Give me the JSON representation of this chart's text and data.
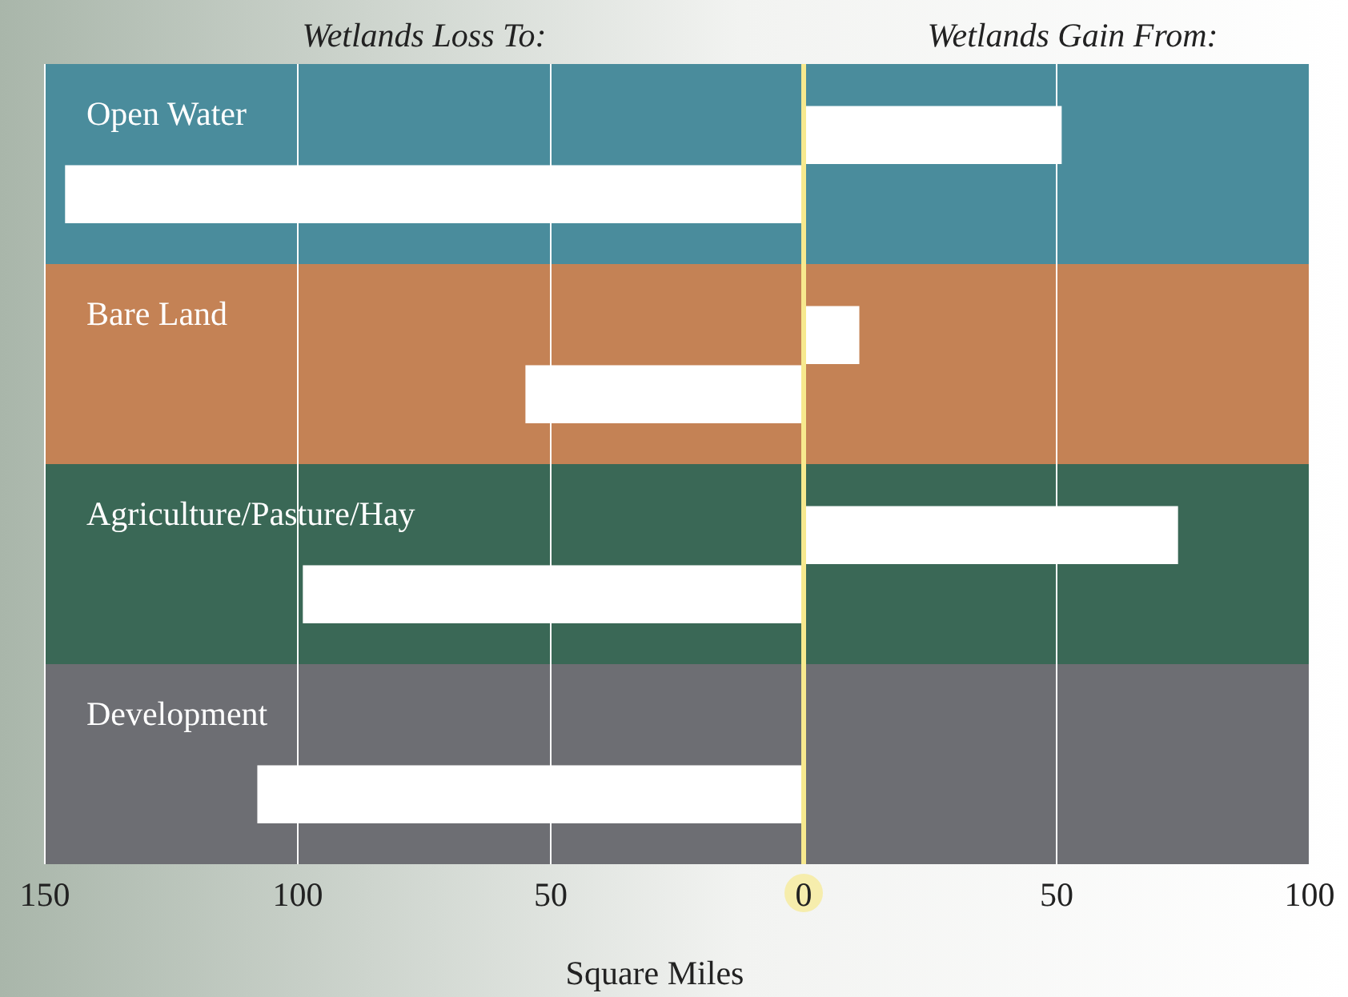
{
  "chart_data": {
    "type": "bar",
    "orientation": "horizontal",
    "categories": [
      "Open Water",
      "Bare Land",
      "Agriculture/Pasture/Hay",
      "Development"
    ],
    "series": [
      {
        "color": "#ffffff",
        "values": [
          51,
          11,
          74,
          null
        ]
      },
      {
        "color": "#ffffff",
        "values": [
          -146,
          -55,
          -99,
          -108
        ]
      }
    ],
    "xlim": [
      -150,
      100
    ],
    "xticks": [
      {
        "value": -150,
        "label": "150"
      },
      {
        "value": -100,
        "label": "100"
      },
      {
        "value": -50,
        "label": "50"
      },
      0,
      50,
      100
    ],
    "xlabel": "Square Miles",
    "grid": "x",
    "annotations": [
      "Wetlands Loss To:",
      "Wetlands Gain From:"
    ],
    "ref_lines": [
      {
        "axis": "x",
        "value": 0,
        "color": "#f7e98e"
      }
    ]
  }
}
